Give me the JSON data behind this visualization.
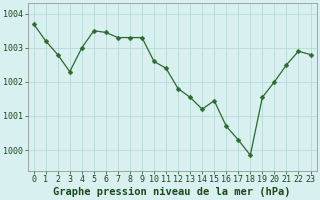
{
  "x": [
    0,
    1,
    2,
    3,
    4,
    5,
    6,
    7,
    8,
    9,
    10,
    11,
    12,
    13,
    14,
    15,
    16,
    17,
    18,
    19,
    20,
    21,
    22,
    23
  ],
  "y": [
    1003.7,
    1003.2,
    1002.8,
    1002.3,
    1003.0,
    1003.5,
    1003.45,
    1003.3,
    1003.3,
    1003.3,
    1002.6,
    1002.4,
    1001.8,
    1001.55,
    1001.2,
    1001.45,
    1000.7,
    1000.3,
    999.85,
    1001.55,
    1002.0,
    1002.5,
    1002.9,
    1002.8
  ],
  "line_color": "#2d6a2d",
  "marker": "D",
  "marker_size": 2.5,
  "bg_color": "#d8f0f0",
  "grid_color": "#b8dada",
  "xlabel": "Graphe pression niveau de la mer (hPa)",
  "xlabel_fontsize": 7.5,
  "text_color": "#1a4a1a",
  "tick_labels": [
    "0",
    "1",
    "2",
    "3",
    "4",
    "5",
    "6",
    "7",
    "8",
    "9",
    "10",
    "11",
    "12",
    "13",
    "14",
    "15",
    "16",
    "17",
    "18",
    "19",
    "20",
    "21",
    "22",
    "23"
  ],
  "yticks": [
    1000,
    1001,
    1002,
    1003,
    1004
  ],
  "ylim": [
    999.4,
    1004.3
  ],
  "xlim": [
    -0.5,
    23.5
  ],
  "tick_fontsize": 6.0,
  "ytick_fontsize": 6.0
}
